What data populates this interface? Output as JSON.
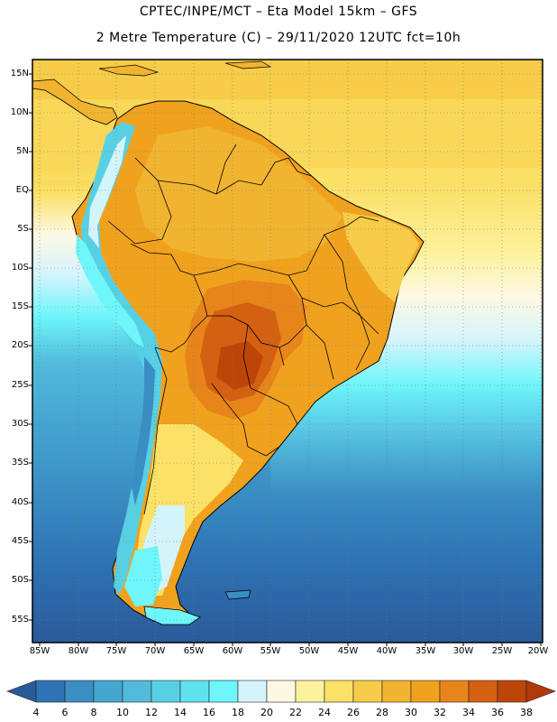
{
  "header": {
    "line1": "CPTEC/INPE/MCT –  Eta Model 15km – GFS",
    "line2": "2 Metre Temperature (C) – 29/11/2020 12UTC fct=10h"
  },
  "map": {
    "lat_labels": [
      "15N",
      "10N",
      "5N",
      "EQ",
      "5S",
      "10S",
      "15S",
      "20S",
      "25S",
      "30S",
      "35S",
      "40S",
      "45S",
      "50S",
      "55S"
    ],
    "lon_labels": [
      "85W",
      "80W",
      "75W",
      "70W",
      "65W",
      "60W",
      "55W",
      "50W",
      "45W",
      "40W",
      "35W",
      "30W",
      "25W",
      "20W"
    ]
  },
  "colorbar": {
    "labels": [
      "4",
      "6",
      "8",
      "10",
      "12",
      "14",
      "16",
      "18",
      "20",
      "22",
      "24",
      "26",
      "28",
      "30",
      "32",
      "34",
      "36",
      "38"
    ],
    "colors": [
      "#2a5a9a",
      "#2e73b4",
      "#3a8ec4",
      "#45a6d2",
      "#52bbdc",
      "#58d0e4",
      "#5ee3ee",
      "#6ef6fa",
      "#d4f4fc",
      "#fdf8e4",
      "#fcf29e",
      "#fbe168",
      "#f6cc48",
      "#f1b431",
      "#f0a21e",
      "#e8851a",
      "#d46012",
      "#be4508",
      "#b0380a"
    ]
  }
}
